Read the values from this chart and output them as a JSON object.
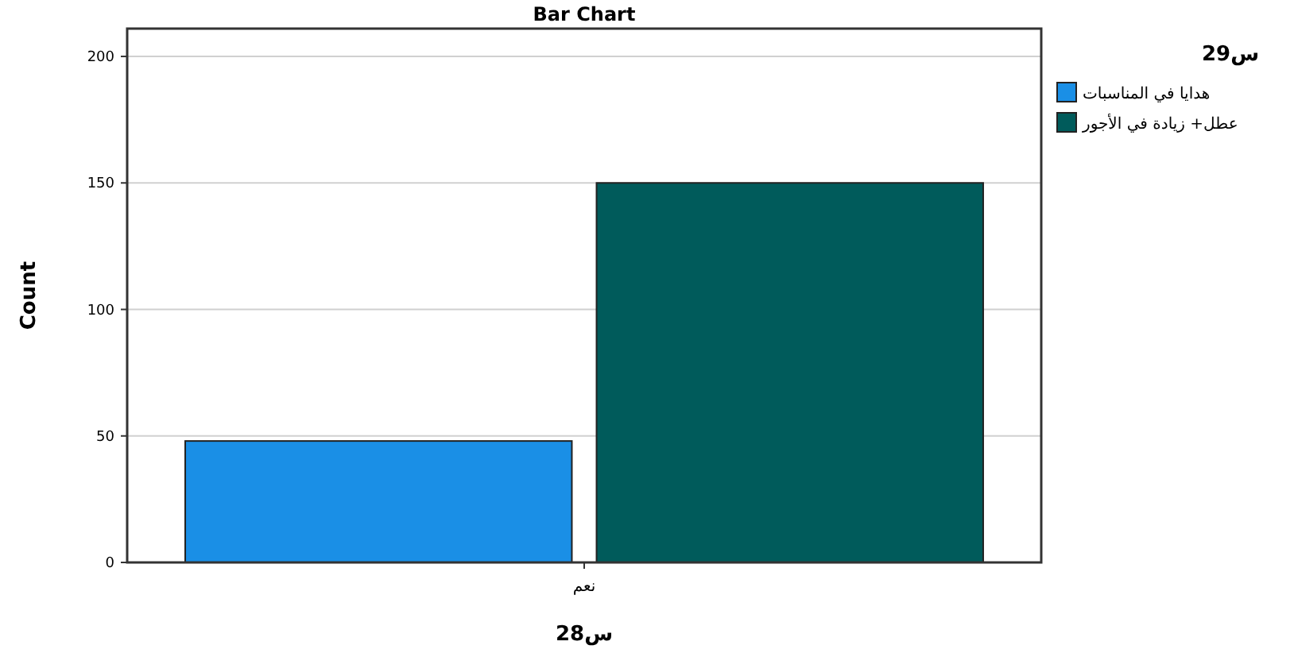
{
  "chart_data": {
    "type": "bar",
    "title": "Bar Chart",
    "xlabel": "س28",
    "ylabel": "Count",
    "legend_title": "س29",
    "categories": [
      "نعم"
    ],
    "series": [
      {
        "name": "هدايا في المناسبات",
        "color": "#1a8fe6",
        "values": [
          48
        ]
      },
      {
        "name": "عطل+ زيادة في الأجور",
        "color": "#005b5b",
        "values": [
          150
        ]
      }
    ],
    "ylim": [
      0,
      211
    ],
    "yticks": [
      0,
      50,
      100,
      150,
      200
    ],
    "grid": "y",
    "legend": "right"
  }
}
